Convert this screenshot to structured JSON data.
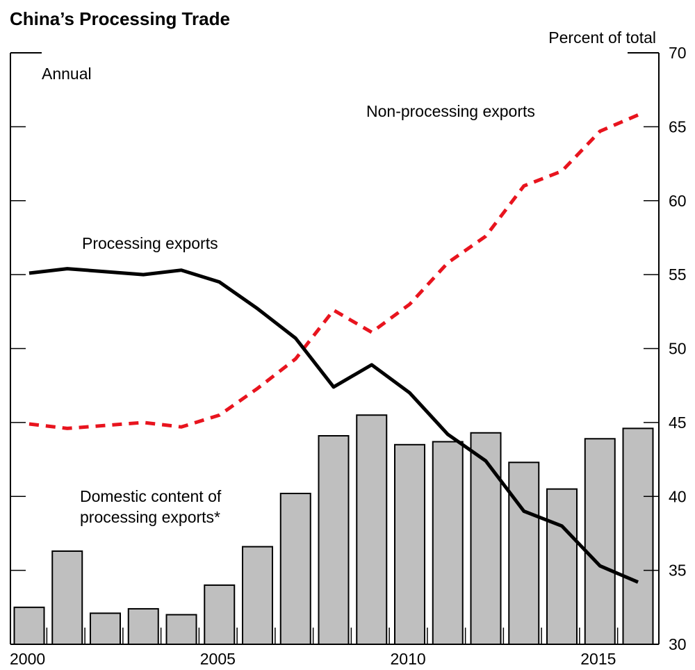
{
  "chart_data": {
    "type": "bar",
    "title": "China’s Processing Trade",
    "frequency_note": "Annual",
    "ylabel": "Percent of total",
    "xlabel": "",
    "ylim": [
      30,
      70
    ],
    "yticks": [
      30,
      35,
      40,
      45,
      50,
      55,
      60,
      65,
      70
    ],
    "y_axis_side": "right",
    "xlim": [
      2000,
      2016
    ],
    "xtick_labels": [
      "2000",
      "2005",
      "2010",
      "2015"
    ],
    "x": [
      2000,
      2001,
      2002,
      2003,
      2004,
      2005,
      2006,
      2007,
      2008,
      2009,
      2010,
      2011,
      2012,
      2013,
      2014,
      2015,
      2016
    ],
    "grid": false,
    "series": [
      {
        "name": "Domestic content of processing exports*",
        "label_lines": [
          "Domestic content of",
          "processing exports*"
        ],
        "kind": "bar",
        "color": "#bfbfbf",
        "label_color": "#404040",
        "values": [
          32.5,
          36.3,
          32.1,
          32.4,
          32.0,
          34.0,
          36.6,
          40.2,
          44.1,
          45.5,
          43.5,
          43.7,
          44.3,
          42.3,
          40.5,
          43.9,
          44.6
        ]
      },
      {
        "name": "Processing exports",
        "kind": "line",
        "style": "solid",
        "color": "#000000",
        "label_color": "#000000",
        "values": [
          55.1,
          55.4,
          55.2,
          55.0,
          55.3,
          54.5,
          52.7,
          50.7,
          47.4,
          48.9,
          47.0,
          44.2,
          42.4,
          39.0,
          38.0,
          35.3,
          34.2
        ]
      },
      {
        "name": "Non-processing exports",
        "kind": "line",
        "style": "dashed",
        "color": "#e8141e",
        "label_color": "#e8141e",
        "values": [
          44.9,
          44.6,
          44.8,
          45.0,
          44.7,
          45.5,
          47.3,
          49.3,
          52.6,
          51.1,
          53.0,
          55.8,
          57.6,
          61.0,
          62.0,
          64.7,
          65.8
        ]
      }
    ]
  }
}
